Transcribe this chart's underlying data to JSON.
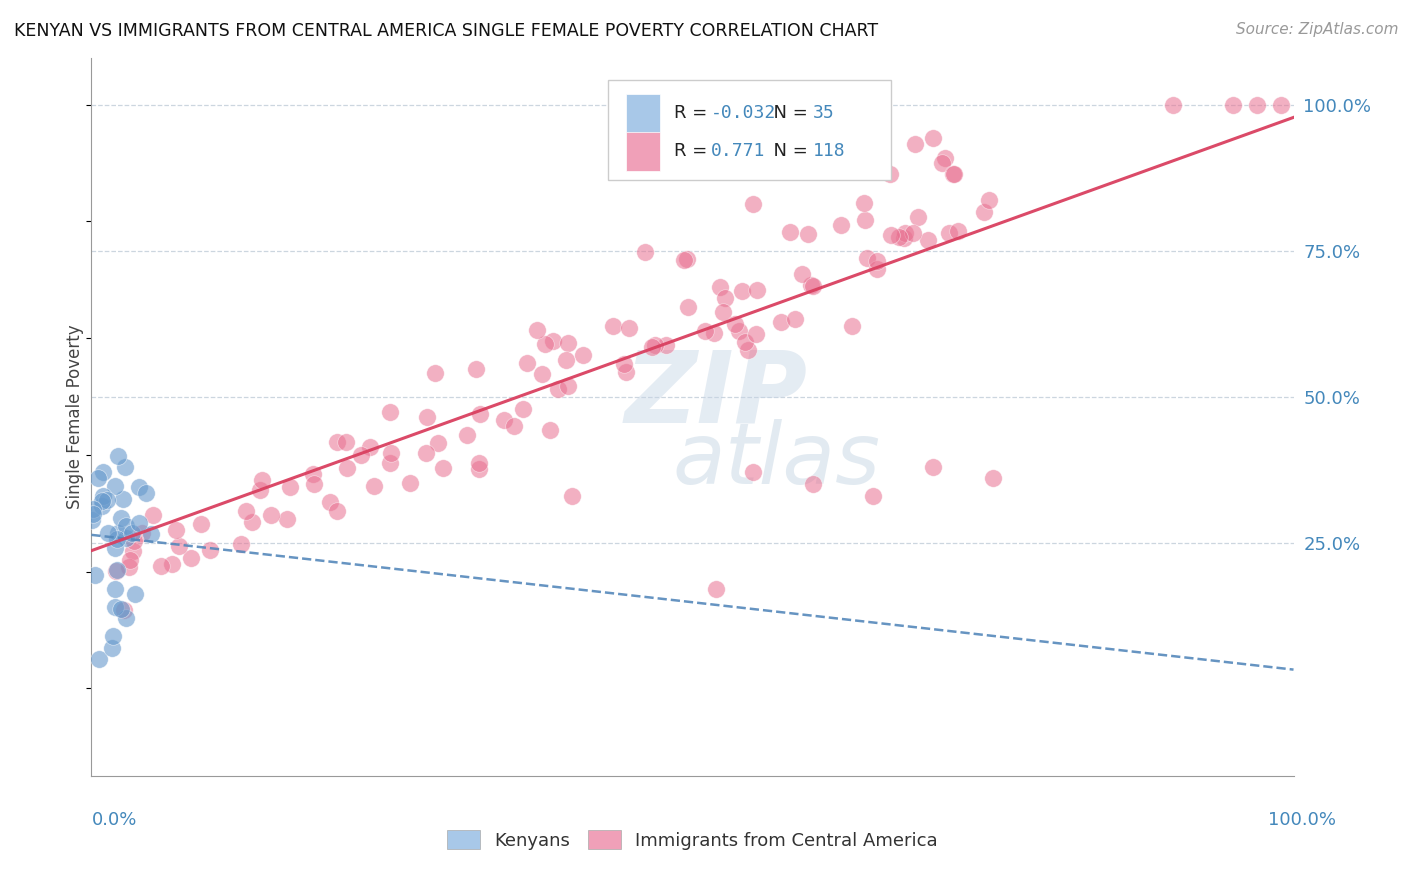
{
  "title": "KENYAN VS IMMIGRANTS FROM CENTRAL AMERICA SINGLE FEMALE POVERTY CORRELATION CHART",
  "source": "Source: ZipAtlas.com",
  "ylabel": "Single Female Poverty",
  "legend_kenyan_color": "#a8c8e8",
  "legend_central_color": "#f0a0b8",
  "kenyan_scatter_color": "#6699cc",
  "central_scatter_color": "#e87090",
  "kenyan_line_color": "#5588bb",
  "central_line_color": "#d94060",
  "R_kenyan": -0.032,
  "N_kenyan": 35,
  "R_central": 0.771,
  "N_central": 118,
  "grid_color": "#c0ccd8",
  "right_tick_color": "#4488bb",
  "watermark_zip_color": "#ccd8e8",
  "watermark_atlas_color": "#b8ccdd"
}
